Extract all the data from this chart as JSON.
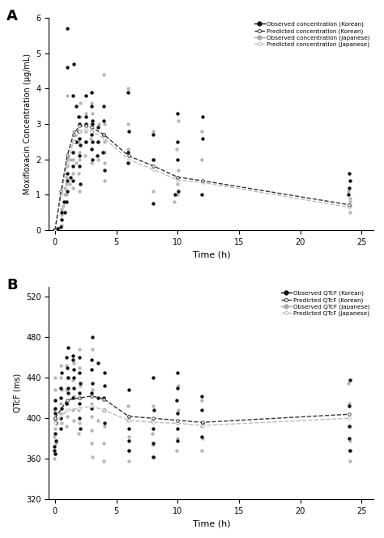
{
  "panel_A": {
    "title": "A",
    "ylabel": "Moxifloxacin Concentration (μg/mL)",
    "xlabel": "Time (h)",
    "ylim": [
      0,
      6
    ],
    "xlim": [
      -0.5,
      26
    ],
    "yticks": [
      0,
      1,
      2,
      3,
      4,
      5,
      6
    ],
    "xticks": [
      0,
      5,
      10,
      15,
      20,
      25
    ],
    "korean_obs_times": [
      0.0,
      0.0,
      0.0,
      0.0,
      0.0,
      0.0,
      0.25,
      0.5,
      0.5,
      0.5,
      0.75,
      0.75,
      1.0,
      1.0,
      1.0,
      1.0,
      1.0,
      1.0,
      1.25,
      1.5,
      1.5,
      1.5,
      1.5,
      1.5,
      1.75,
      1.75,
      2.0,
      2.0,
      2.0,
      2.0,
      2.0,
      2.0,
      2.0,
      2.0,
      2.5,
      2.5,
      2.5,
      2.5,
      3.0,
      3.0,
      3.0,
      3.0,
      3.0,
      3.0,
      3.0,
      3.0,
      3.5,
      3.5,
      3.5,
      4.0,
      4.0,
      4.0,
      4.0,
      4.0,
      6.0,
      6.0,
      6.0,
      6.0,
      8.0,
      8.0,
      8.0,
      9.75,
      10.0,
      10.0,
      10.0,
      10.0,
      10.0,
      12.0,
      12.0,
      12.0,
      24.0,
      24.0,
      24.0,
      24.0
    ],
    "korean_obs_vals": [
      0.0,
      0.0,
      0.0,
      0.0,
      0.0,
      0.0,
      0.05,
      0.1,
      0.3,
      0.5,
      0.5,
      0.8,
      0.8,
      1.1,
      1.4,
      1.6,
      4.6,
      5.7,
      1.5,
      1.4,
      1.8,
      2.2,
      3.8,
      4.7,
      2.5,
      3.5,
      1.3,
      1.8,
      2.1,
      2.4,
      2.6,
      2.8,
      3.0,
      3.2,
      2.5,
      3.0,
      3.2,
      3.8,
      2.0,
      2.3,
      2.5,
      2.7,
      3.0,
      3.1,
      3.5,
      3.9,
      2.1,
      2.5,
      2.9,
      1.7,
      2.2,
      2.7,
      3.1,
      3.5,
      1.9,
      2.2,
      2.8,
      3.9,
      0.75,
      2.0,
      2.7,
      1.0,
      1.1,
      1.5,
      2.0,
      2.5,
      3.3,
      1.0,
      2.6,
      3.2,
      1.0,
      1.2,
      1.4,
      1.6
    ],
    "korean_pred_times": [
      0.0,
      0.5,
      1.0,
      1.5,
      2.0,
      2.5,
      3.0,
      4.0,
      6.0,
      8.0,
      10.0,
      12.0,
      24.0
    ],
    "korean_pred_vals": [
      0.0,
      1.1,
      2.1,
      2.7,
      2.95,
      2.95,
      2.9,
      2.7,
      2.1,
      1.82,
      1.5,
      1.4,
      0.72
    ],
    "japanese_obs_times": [
      0.0,
      0.0,
      0.0,
      0.0,
      0.0,
      0.0,
      0.25,
      0.5,
      0.5,
      0.5,
      0.75,
      0.75,
      0.75,
      1.0,
      1.0,
      1.0,
      1.0,
      1.0,
      1.0,
      1.25,
      1.25,
      1.5,
      1.5,
      1.5,
      1.5,
      1.5,
      1.75,
      1.75,
      2.0,
      2.0,
      2.0,
      2.0,
      2.0,
      2.0,
      2.0,
      2.0,
      2.5,
      2.5,
      2.5,
      2.5,
      3.0,
      3.0,
      3.0,
      3.0,
      3.0,
      3.0,
      3.0,
      3.0,
      3.5,
      3.5,
      3.5,
      4.0,
      4.0,
      4.0,
      4.0,
      4.0,
      4.0,
      6.0,
      6.0,
      6.0,
      6.0,
      8.0,
      8.0,
      8.0,
      9.75,
      10.0,
      10.0,
      10.0,
      10.0,
      10.0,
      12.0,
      12.0,
      12.0,
      24.0,
      24.0,
      24.0,
      24.0,
      24.0
    ],
    "japanese_obs_vals": [
      0.0,
      0.0,
      0.0,
      0.0,
      0.0,
      0.0,
      0.05,
      0.15,
      0.45,
      0.6,
      0.7,
      1.0,
      1.2,
      1.0,
      1.3,
      1.5,
      1.8,
      2.0,
      3.8,
      1.3,
      2.0,
      1.2,
      1.6,
      2.0,
      2.5,
      2.8,
      1.9,
      2.5,
      1.1,
      1.6,
      2.0,
      2.2,
      2.5,
      2.8,
      3.2,
      3.6,
      2.1,
      2.5,
      2.8,
      3.3,
      1.9,
      2.3,
      2.6,
      2.8,
      3.0,
      3.3,
      3.6,
      3.9,
      2.0,
      2.5,
      3.0,
      1.4,
      1.9,
      2.2,
      2.5,
      3.0,
      4.4,
      1.9,
      2.3,
      3.0,
      4.0,
      1.1,
      2.0,
      2.8,
      0.8,
      1.0,
      1.3,
      1.7,
      2.3,
      3.1,
      1.4,
      2.0,
      2.8,
      0.5,
      0.7,
      0.8,
      0.9,
      1.1
    ],
    "japanese_pred_times": [
      0.0,
      0.5,
      1.0,
      1.5,
      2.0,
      2.5,
      3.0,
      4.0,
      6.0,
      8.0,
      10.0,
      12.0,
      24.0
    ],
    "japanese_pred_vals": [
      0.0,
      1.0,
      1.9,
      2.5,
      2.8,
      2.85,
      2.8,
      2.6,
      2.0,
      1.72,
      1.42,
      1.35,
      0.65
    ],
    "legend": [
      "Observed concentration (Korean)",
      "Predicted concentration (Korean)",
      "Observed concentration (Japanese)",
      "Predicted concentration (Japanese)"
    ]
  },
  "panel_B": {
    "title": "B",
    "ylabel": "QTcF (ms)",
    "xlabel": "Time (h)",
    "ylim": [
      320,
      530
    ],
    "xlim": [
      -0.5,
      26
    ],
    "yticks": [
      320,
      360,
      400,
      440,
      480,
      520
    ],
    "xticks": [
      0,
      5,
      10,
      15,
      20,
      25
    ],
    "korean_obs_times": [
      0.0,
      0.0,
      0.0,
      0.0,
      0.0,
      0.0,
      0.0,
      0.0,
      0.0,
      0.0,
      0.5,
      0.5,
      0.5,
      0.5,
      0.5,
      0.5,
      1.0,
      1.0,
      1.0,
      1.0,
      1.0,
      1.0,
      1.0,
      1.5,
      1.5,
      1.5,
      1.5,
      1.5,
      1.5,
      2.0,
      2.0,
      2.0,
      2.0,
      2.0,
      2.0,
      2.0,
      3.0,
      3.0,
      3.0,
      3.0,
      3.0,
      3.0,
      3.5,
      3.5,
      4.0,
      4.0,
      4.0,
      4.0,
      4.0,
      6.0,
      6.0,
      6.0,
      6.0,
      6.0,
      8.0,
      8.0,
      8.0,
      8.0,
      8.0,
      10.0,
      10.0,
      10.0,
      10.0,
      10.0,
      10.0,
      12.0,
      12.0,
      12.0,
      12.0,
      24.0,
      24.0,
      24.0,
      24.0,
      24.0
    ],
    "korean_obs_vals": [
      365,
      368,
      372,
      378,
      385,
      395,
      400,
      405,
      410,
      418,
      390,
      400,
      410,
      420,
      430,
      445,
      415,
      425,
      430,
      440,
      450,
      460,
      470,
      420,
      430,
      440,
      448,
      458,
      462,
      390,
      400,
      415,
      425,
      435,
      445,
      460,
      410,
      425,
      435,
      448,
      458,
      480,
      420,
      455,
      395,
      408,
      420,
      432,
      445,
      368,
      378,
      390,
      402,
      428,
      362,
      375,
      390,
      408,
      440,
      378,
      390,
      405,
      418,
      430,
      445,
      382,
      395,
      408,
      422,
      368,
      380,
      392,
      412,
      438
    ],
    "korean_pred_times": [
      0.0,
      1.0,
      2.0,
      3.0,
      4.0,
      6.0,
      8.0,
      10.0,
      12.0,
      24.0
    ],
    "korean_pred_vals": [
      400,
      418,
      420,
      422,
      419,
      402,
      400,
      398,
      396,
      404
    ],
    "japanese_obs_times": [
      0.0,
      0.0,
      0.0,
      0.0,
      0.0,
      0.0,
      0.0,
      0.0,
      0.0,
      0.0,
      0.5,
      0.5,
      0.5,
      0.5,
      0.5,
      0.5,
      1.0,
      1.0,
      1.0,
      1.0,
      1.0,
      1.0,
      1.5,
      1.5,
      1.5,
      1.5,
      1.5,
      2.0,
      2.0,
      2.0,
      2.0,
      2.0,
      2.0,
      2.0,
      3.0,
      3.0,
      3.0,
      3.0,
      3.0,
      3.0,
      3.0,
      3.5,
      4.0,
      4.0,
      4.0,
      4.0,
      6.0,
      6.0,
      6.0,
      6.0,
      6.0,
      8.0,
      8.0,
      8.0,
      8.0,
      8.0,
      10.0,
      10.0,
      10.0,
      10.0,
      10.0,
      12.0,
      12.0,
      12.0,
      12.0,
      24.0,
      24.0,
      24.0,
      24.0,
      24.0,
      24.0
    ],
    "japanese_obs_vals": [
      360,
      365,
      375,
      382,
      390,
      398,
      408,
      418,
      428,
      440,
      395,
      405,
      415,
      428,
      440,
      452,
      392,
      402,
      415,
      428,
      440,
      452,
      398,
      408,
      422,
      438,
      455,
      385,
      395,
      408,
      420,
      432,
      450,
      468,
      362,
      375,
      388,
      402,
      415,
      428,
      468,
      398,
      358,
      375,
      392,
      408,
      358,
      368,
      382,
      398,
      412,
      362,
      374,
      385,
      398,
      412,
      368,
      380,
      395,
      408,
      432,
      368,
      380,
      392,
      418,
      358,
      368,
      378,
      392,
      415,
      435
    ],
    "japanese_pred_times": [
      0.0,
      1.0,
      2.0,
      3.0,
      4.0,
      6.0,
      8.0,
      10.0,
      12.0,
      24.0
    ],
    "japanese_pred_vals": [
      395,
      408,
      410,
      412,
      408,
      398,
      396,
      395,
      393,
      400
    ],
    "legend": [
      "Observed QTcF (Korean)",
      "Predicted QTcF (Korean)",
      "Observed QTcF (Japanese)",
      "Predicted QTcF (Japanese)"
    ]
  },
  "colors": {
    "korean_black": "#111111",
    "japanese_gray": "#aaaaaa",
    "korean_pred_line": "#333333",
    "japanese_pred_line": "#bbbbbb"
  },
  "scatter_size": 10,
  "line_width": 1.0,
  "font_size": 7,
  "label_font_size": 8
}
